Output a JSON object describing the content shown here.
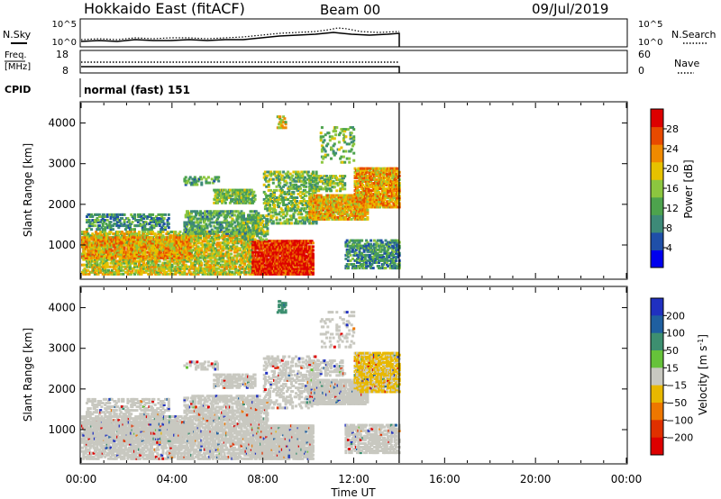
{
  "header": {
    "station": "Hokkaido East (fitACF)",
    "beam": "Beam 00",
    "date": "09/Jul/2019"
  },
  "status_panels": {
    "nsky_label": "N.Sky",
    "nsky_ticks": [
      "10^5",
      "10^0"
    ],
    "nsearch_label": "N.Search",
    "nsearch_ticks": [
      "10^5",
      "10^0"
    ],
    "freq_label_1": "Freq.",
    "freq_label_2": "[MHz]",
    "freq_ticks": [
      "18",
      "8"
    ],
    "nave_label": "Nave",
    "nave_ticks": [
      "60",
      "0"
    ],
    "cpid_label": "CPID",
    "cpid_text": "normal (fast) 151"
  },
  "colors": {
    "power_scale": [
      "#0000ee",
      "#1f4fa8",
      "#3d8a78",
      "#4da34d",
      "#8cc63f",
      "#e6c200",
      "#f08a00",
      "#e84a00",
      "#dd0000"
    ],
    "velocity_scale": [
      "#2030c0",
      "#1f5fa0",
      "#3d8f70",
      "#66c23a",
      "#c8c8c0",
      "#e8b800",
      "#ee7700",
      "#e03000",
      "#dd0000"
    ],
    "ground_scatter": "#c0c0b8"
  },
  "chart_data": [
    {
      "type": "heatmap",
      "name": "power",
      "x_ticks": [
        "00:00",
        "04:00",
        "08:00",
        "12:00",
        "16:00",
        "20:00",
        "00:00"
      ],
      "xlim_hours": [
        0,
        24
      ],
      "ylabel": "Slant Range [km]",
      "y_ticks": [
        1000,
        2000,
        3000,
        4000
      ],
      "ylim": [
        180,
        4500
      ],
      "colorbar_label": "Power [dB]",
      "colorbar_ticks": [
        4,
        8,
        12,
        16,
        20,
        24,
        28
      ],
      "colorbar_range": [
        0,
        32
      ],
      "data_end_hour": 14.0,
      "regions": [
        {
          "t0": 0.0,
          "t1": 7.5,
          "r0": 250,
          "r1": 1300,
          "level": 18,
          "density": 0.55
        },
        {
          "t0": 0.0,
          "t1": 4.8,
          "r0": 650,
          "r1": 1150,
          "level": 22,
          "density": 0.6
        },
        {
          "t0": 0.2,
          "t1": 3.8,
          "r0": 1350,
          "r1": 1750,
          "level": 10,
          "density": 0.4
        },
        {
          "t0": 4.5,
          "t1": 7.8,
          "r0": 1250,
          "r1": 1800,
          "level": 12,
          "density": 0.45
        },
        {
          "t0": 5.8,
          "t1": 7.6,
          "r0": 2000,
          "r1": 2350,
          "level": 14,
          "density": 0.55
        },
        {
          "t0": 4.5,
          "t1": 6.0,
          "r0": 2450,
          "r1": 2650,
          "level": 12,
          "density": 0.3
        },
        {
          "t0": 7.5,
          "t1": 10.2,
          "r0": 250,
          "r1": 1100,
          "level": 29,
          "density": 0.85
        },
        {
          "t0": 7.0,
          "t1": 8.2,
          "r0": 1100,
          "r1": 1700,
          "level": 14,
          "density": 0.45
        },
        {
          "t0": 8.0,
          "t1": 10.4,
          "r0": 1500,
          "r1": 2800,
          "level": 14,
          "density": 0.35
        },
        {
          "t0": 10.0,
          "t1": 12.6,
          "r0": 1600,
          "r1": 2200,
          "level": 21,
          "density": 0.75
        },
        {
          "t0": 10.0,
          "t1": 11.6,
          "r0": 2300,
          "r1": 2700,
          "level": 15,
          "density": 0.4
        },
        {
          "t0": 12.0,
          "t1": 14.0,
          "r0": 1900,
          "r1": 2850,
          "level": 22,
          "density": 0.7
        },
        {
          "t0": 11.6,
          "t1": 14.0,
          "r0": 400,
          "r1": 1100,
          "level": 10,
          "density": 0.5
        },
        {
          "t0": 10.5,
          "t1": 12.0,
          "r0": 3000,
          "r1": 3900,
          "level": 14,
          "density": 0.15
        },
        {
          "t0": 8.6,
          "t1": 9.0,
          "r0": 3850,
          "r1": 4150,
          "level": 18,
          "density": 0.4
        }
      ]
    },
    {
      "type": "heatmap",
      "name": "velocity",
      "x_ticks": [
        "00:00",
        "04:00",
        "08:00",
        "12:00",
        "16:00",
        "20:00",
        "00:00"
      ],
      "xlim_hours": [
        0,
        24
      ],
      "xlabel": "Time UT",
      "ylabel": "Slant Range [km]",
      "y_ticks": [
        1000,
        2000,
        3000,
        4000
      ],
      "ylim": [
        180,
        4500
      ],
      "colorbar_label": "Velocity [m s-1]",
      "colorbar_ticks": [
        "200",
        "100",
        "50",
        "15",
        "−15",
        "−50",
        "−100",
        "−200"
      ],
      "data_end_hour": 14.0,
      "regions": [
        {
          "t0": 0.0,
          "t1": 7.5,
          "r0": 250,
          "r1": 1300,
          "level": 0,
          "density": 0.55
        },
        {
          "t0": 0.0,
          "t1": 4.8,
          "r0": 650,
          "r1": 1150,
          "level": 0,
          "density": 0.6
        },
        {
          "t0": 0.2,
          "t1": 3.8,
          "r0": 1350,
          "r1": 1750,
          "level": 0,
          "density": 0.35
        },
        {
          "t0": 4.5,
          "t1": 7.8,
          "r0": 1250,
          "r1": 1800,
          "level": 0,
          "density": 0.45
        },
        {
          "t0": 5.8,
          "t1": 7.6,
          "r0": 2000,
          "r1": 2350,
          "level": 0,
          "density": 0.55
        },
        {
          "t0": 4.5,
          "t1": 6.0,
          "r0": 2450,
          "r1": 2650,
          "level": 0,
          "density": 0.3
        },
        {
          "t0": 7.5,
          "t1": 10.2,
          "r0": 250,
          "r1": 1100,
          "level": 0,
          "density": 0.85
        },
        {
          "t0": 7.0,
          "t1": 8.2,
          "r0": 1100,
          "r1": 1700,
          "level": 0,
          "density": 0.45
        },
        {
          "t0": 8.0,
          "t1": 10.4,
          "r0": 1500,
          "r1": 2800,
          "level": 0,
          "density": 0.3
        },
        {
          "t0": 10.0,
          "t1": 12.6,
          "r0": 1600,
          "r1": 2200,
          "level": 0,
          "density": 0.75
        },
        {
          "t0": 10.0,
          "t1": 11.6,
          "r0": 2300,
          "r1": 2700,
          "level": 0,
          "density": 0.4
        },
        {
          "t0": 12.0,
          "t1": 14.0,
          "r0": 1900,
          "r1": 2850,
          "level": -20,
          "density": 0.7
        },
        {
          "t0": 11.6,
          "t1": 14.0,
          "r0": 400,
          "r1": 1100,
          "level": 0,
          "density": 0.5
        },
        {
          "t0": 10.5,
          "t1": 12.0,
          "r0": 3000,
          "r1": 3900,
          "level": 0,
          "density": 0.15
        },
        {
          "t0": 8.6,
          "t1": 9.0,
          "r0": 3850,
          "r1": 4150,
          "level": 60,
          "density": 0.4
        }
      ]
    }
  ]
}
